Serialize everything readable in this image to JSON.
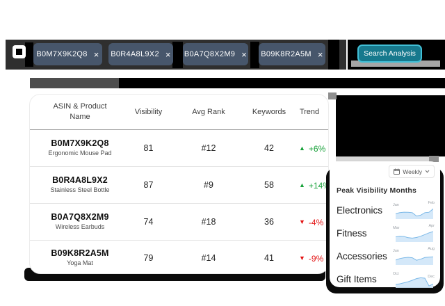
{
  "topbar": {
    "chips": [
      {
        "label": "B0M7X9K2Q8"
      },
      {
        "label": "B0R4A8L9X2"
      },
      {
        "label": "B0A7Q8X2M9"
      },
      {
        "label": "B09K8R2A5M"
      }
    ],
    "search_button": "Search Analysis"
  },
  "table": {
    "columns": [
      "ASIN & Product Name",
      "Visibility",
      "Avg Rank",
      "Keywords",
      "Trend"
    ],
    "rows": [
      {
        "asin": "B0M7X9K2Q8",
        "product": "Ergonomic Mouse Pad",
        "visibility": "81",
        "avg_rank": "#12",
        "keywords": "42",
        "trend": "+6%",
        "direction": "up"
      },
      {
        "asin": "B0R4A8L9X2",
        "product": "Stainless Steel Bottle",
        "visibility": "87",
        "avg_rank": "#9",
        "keywords": "58",
        "trend": "+14%",
        "direction": "up"
      },
      {
        "asin": "B0A7Q8X2M9",
        "product": "Wireless Earbuds",
        "visibility": "74",
        "avg_rank": "#18",
        "keywords": "36",
        "trend": "-4%",
        "direction": "down"
      },
      {
        "asin": "B09K8R2A5M",
        "product": "Yoga Mat",
        "visibility": "79",
        "avg_rank": "#14",
        "keywords": "41",
        "trend": "-9%",
        "direction": "down"
      }
    ]
  },
  "panel": {
    "period_selector": "Weekly",
    "title": "Peak Visibility Months",
    "categories": [
      {
        "label": "Electronics",
        "start_month": "Jan",
        "peak_month": "Feb",
        "spark": [
          0.48,
          0.58,
          0.63,
          0.62,
          0.58,
          0.26,
          0.34,
          0.58,
          0.62,
          0.95
        ]
      },
      {
        "label": "Fitness",
        "start_month": "Mar",
        "peak_month": "Apr",
        "spark": [
          0.46,
          0.52,
          0.5,
          0.38,
          0.34,
          0.4,
          0.52,
          0.68,
          0.85,
          0.97
        ]
      },
      {
        "label": "Accessories",
        "start_month": "Jun",
        "peak_month": "Aug",
        "spark": [
          0.44,
          0.58,
          0.66,
          0.7,
          0.66,
          0.42,
          0.52,
          0.68,
          0.72,
          0.74
        ]
      },
      {
        "label": "Gift Items",
        "start_month": "Oct",
        "peak_month": "Dec",
        "spark": [
          0.3,
          0.36,
          0.46,
          0.56,
          0.7,
          0.86,
          0.94,
          0.9,
          0.16,
          0.34
        ]
      }
    ]
  },
  "icons": {
    "close": "×",
    "trend_up": "▲",
    "trend_down": "▼"
  },
  "colors": {
    "topbar_bg": "#2f2f2f",
    "chip_bg": "#47566b",
    "chip_text": "#ffffff",
    "button_bg": "#17798d",
    "button_border": "#41bfd6",
    "trend_up": "#18a13a",
    "trend_down": "#e31414",
    "spark_line": "#7cb9e8",
    "spark_fill": "#cfe6f8",
    "strip_gray": "#4d4d4d",
    "shadow_black": "#0b0b0b"
  }
}
